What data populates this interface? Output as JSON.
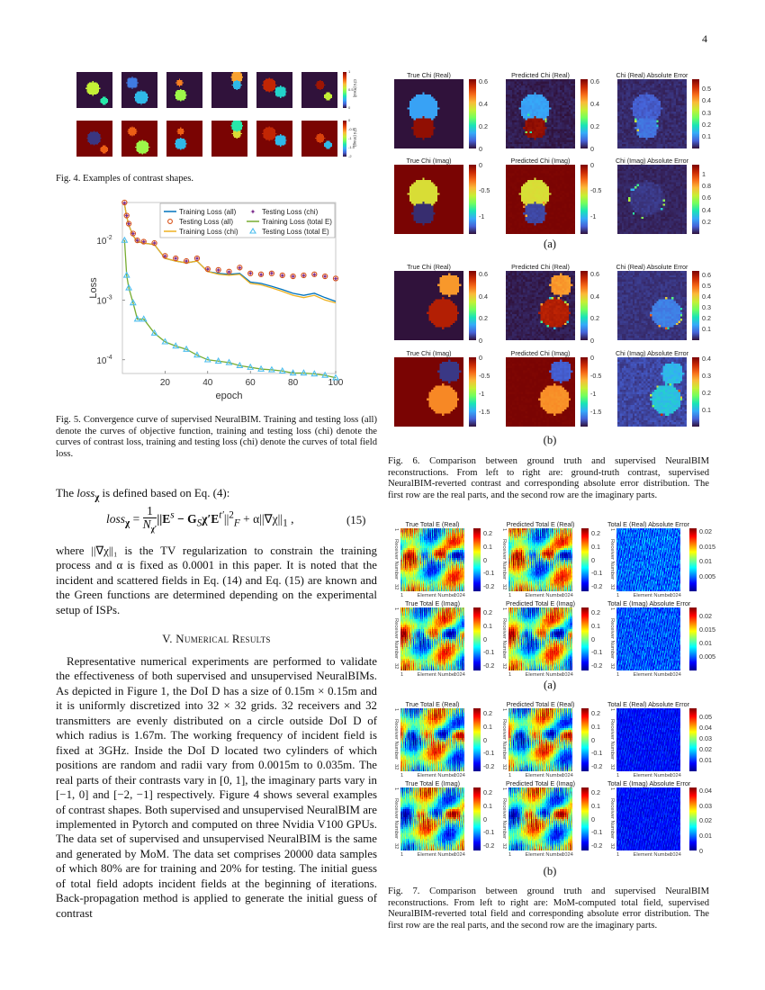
{
  "page_number": "4",
  "fig4": {
    "caption": "Fig. 4.  Examples of contrast shapes.",
    "colorbar_real": {
      "label": "Chi (Real)",
      "ticks": [
        "1",
        "0.5",
        "0"
      ]
    },
    "colorbar_imag": {
      "label": "Chi (Imag)",
      "ticks": [
        "0",
        "-0.5",
        "-1",
        "-1.5",
        "-2"
      ]
    }
  },
  "fig5": {
    "caption": "Fig. 5.  Convergence curve of supervised NeuralBIM. Training and testing loss (all) denote the curves of objective function, training and testing loss (chi) denote the curves of contrast loss, training and testing loss (chi) denote the curves of total field loss."
  },
  "chart_data": {
    "type": "line",
    "xlabel": "epoch",
    "ylabel": "Loss",
    "xlim": [
      0,
      100
    ],
    "ylim": [
      5.9e-05,
      0.043
    ],
    "yscale": "log",
    "x_ticks": [
      "20",
      "40",
      "60",
      "80",
      "100"
    ],
    "y_ticks": [
      {
        "label": "10",
        "exp": "-2",
        "value": 0.01
      },
      {
        "label": "10",
        "exp": "-3",
        "value": 0.001
      },
      {
        "label": "10",
        "exp": "-4",
        "value": 0.0001
      }
    ],
    "grid": false,
    "legend_position": "top-right",
    "x": [
      1,
      2,
      3,
      5,
      7,
      10,
      15,
      20,
      25,
      30,
      35,
      40,
      45,
      50,
      55,
      60,
      65,
      70,
      75,
      80,
      85,
      90,
      95,
      100
    ],
    "series": [
      {
        "name": "Training Loss (all)",
        "color": "#0072bd",
        "style": "line",
        "values": [
          0.04,
          0.025,
          0.018,
          0.012,
          0.0095,
          0.009,
          0.0085,
          0.005,
          0.0045,
          0.0042,
          0.0045,
          0.003,
          0.0028,
          0.0027,
          0.0028,
          0.002,
          0.0019,
          0.0017,
          0.0015,
          0.0013,
          0.0012,
          0.0013,
          0.0011,
          0.00095
        ]
      },
      {
        "name": "Testing Loss (all)",
        "color": "#d95319",
        "style": "circle",
        "values": [
          0.043,
          0.026,
          0.019,
          0.013,
          0.01,
          0.0095,
          0.009,
          0.0055,
          0.005,
          0.0045,
          0.005,
          0.0033,
          0.0032,
          0.003,
          0.0035,
          0.0028,
          0.0027,
          0.0028,
          0.0026,
          0.0025,
          0.0026,
          0.0027,
          0.0025,
          0.0023
        ]
      },
      {
        "name": "Training Loss (chi)",
        "color": "#edb120",
        "style": "line",
        "values": [
          0.04,
          0.025,
          0.018,
          0.012,
          0.0095,
          0.009,
          0.0085,
          0.005,
          0.0045,
          0.0042,
          0.0045,
          0.003,
          0.0027,
          0.0026,
          0.0027,
          0.0019,
          0.0018,
          0.0016,
          0.0014,
          0.0012,
          0.0011,
          0.0012,
          0.001,
          0.0009
        ]
      },
      {
        "name": "Testing Loss (chi)",
        "color": "#7e2f8e",
        "style": "star",
        "values": [
          0.042,
          0.026,
          0.019,
          0.013,
          0.01,
          0.0095,
          0.009,
          0.0055,
          0.005,
          0.0045,
          0.005,
          0.0033,
          0.0032,
          0.003,
          0.0035,
          0.0028,
          0.0027,
          0.0028,
          0.0026,
          0.0025,
          0.0026,
          0.0027,
          0.0025,
          0.0023
        ]
      },
      {
        "name": "Training Loss (total E)",
        "color": "#77ac30",
        "style": "line",
        "values": [
          0.01,
          0.0026,
          0.0016,
          0.0009,
          0.00048,
          0.00048,
          0.00028,
          0.0002,
          0.00017,
          0.00015,
          0.00012,
          0.0001,
          9.5e-05,
          9e-05,
          8e-05,
          7.5e-05,
          7e-05,
          6.8e-05,
          6.5e-05,
          6e-05,
          6e-05,
          5.8e-05,
          5.5e-05,
          5e-05
        ]
      },
      {
        "name": "Testing Loss (total E)",
        "color": "#4dbeee",
        "style": "triangle",
        "values": [
          0.01,
          0.0026,
          0.0016,
          0.0009,
          0.00048,
          0.00048,
          0.00028,
          0.0002,
          0.00017,
          0.00015,
          0.00012,
          0.0001,
          9.5e-05,
          9e-05,
          8e-05,
          7.5e-05,
          7e-05,
          6.8e-05,
          6.5e-05,
          6e-05,
          6e-05,
          5.8e-05,
          5.5e-05,
          5e-05
        ]
      }
    ]
  },
  "left_text": {
    "intro_pre": "The ",
    "intro_loss": "loss",
    "intro_sub": "χ",
    "intro_post": " is defined based on Eq. (4):",
    "equation": {
      "lhs": "loss",
      "lhs_sub": "χ",
      "equals": " = ",
      "frac_num": "1",
      "frac_den": "N",
      "frac_den_sub": "χ′",
      "body": "||E",
      "body2": " − G",
      "body3": "χ′E",
      "body4": "||",
      "body5": " + α||∇χ||",
      "body6": " ,",
      "sup_s": "s",
      "sub_S": "S",
      "sup_t": "t′",
      "sup2": "2",
      "subF": "F",
      "sub1": "1",
      "number": "(15)"
    },
    "para1": "where ||∇χ||₁ is the TV regularization to constrain the training process and α is fixed as 0.0001 in this paper. It is noted that the incident and scattered fields in Eq. (14) and Eq. (15) are known and the Green functions are determined depending on the experimental setup of ISPs.",
    "section_heading": "V. Numerical Results",
    "para2": "Representative numerical experiments are performed to validate the effectiveness of both supervised and unsupervised NeuralBIMs. As depicted in Figure 1, the DoI D has a size of 0.15m × 0.15m and it is uniformly discretized into 32 × 32 grids. 32 receivers and 32 transmitters are evenly distributed on a circle outside DoI D of which radius is 1.67m. The working frequency of incident field is fixed at 3GHz. Inside the DoI D located two cylinders of which positions are random and radii vary from 0.0015m to 0.035m. The real parts of their contrasts vary in [0, 1], the imaginary parts vary in [−1, 0] and [−2, −1] respectively. Figure 4 shows several examples of contrast shapes. Both supervised and unsupervised NeuralBIM are implemented in Pytorch and computed on three Nvidia V100 GPUs. The data set of supervised and unsupervised NeuralBIM is the same and generated by MoM. The data set comprises 20000 data samples of which 80% are for training and 20% for testing. The initial guess of total field adopts incident fields at the beginning of iterations. Back-propagation method is applied to generate the initial guess of contrast"
  },
  "fig6": {
    "sub_a": "(a)",
    "sub_b": "(b)",
    "caption": "Fig. 6.  Comparison between ground truth and supervised NeuralBIM reconstructions. From left to right are: ground-truth contrast, supervised NeuralBIM-reverted contrast and corresponding absolute error distribution. The first row are the real parts, and the second row are the imaginary parts.",
    "panels": [
      {
        "title": "True Chi (Real)",
        "ticks": [
          "0.6",
          "0.4",
          "0.2",
          "0"
        ],
        "tick_values": [
          0.6,
          0.4,
          0.2,
          0
        ],
        "range": [
          0,
          0.62
        ],
        "colormap": "turbo"
      },
      {
        "title": "Predicted Chi (Real)",
        "ticks": [
          "0.6",
          "0.4",
          "0.2",
          "0"
        ],
        "tick_values": [
          0.6,
          0.4,
          0.2,
          0
        ],
        "range": [
          0,
          0.62
        ],
        "colormap": "turbo"
      },
      {
        "title": "Chi (Real) Absolute Error",
        "ticks": [
          "0.5",
          "0.4",
          "0.3",
          "0.2",
          "0.1"
        ],
        "tick_values": [
          0.5,
          0.4,
          0.3,
          0.2,
          0.1
        ],
        "range": [
          0,
          0.58
        ],
        "colormap": "turbo"
      },
      {
        "title": "True Chi (Imag)",
        "ticks": [
          "0",
          "-0.5",
          "-1"
        ],
        "tick_values": [
          0,
          -0.5,
          -1
        ],
        "range": [
          -1.35,
          0
        ],
        "colormap": "turbo"
      },
      {
        "title": "Predicted Chi (Imag)",
        "ticks": [
          "0",
          "-0.5",
          "-1"
        ],
        "tick_values": [
          0,
          -0.5,
          -1
        ],
        "range": [
          -1.35,
          0
        ],
        "colormap": "turbo"
      },
      {
        "title": "Chi (Imag) Absolute Error",
        "ticks": [
          "1",
          "0.8",
          "0.6",
          "0.4",
          "0.2"
        ],
        "tick_values": [
          1,
          0.8,
          0.6,
          0.4,
          0.2
        ],
        "range": [
          0,
          1.15
        ],
        "colormap": "turbo"
      },
      {
        "title": "True Chi (Real)",
        "ticks": [
          "0.6",
          "0.4",
          "0.2",
          "0"
        ],
        "tick_values": [
          0.6,
          0.4,
          0.2,
          0
        ],
        "range": [
          0,
          0.63
        ],
        "colormap": "turbo"
      },
      {
        "title": "Predicted Chi (Real)",
        "ticks": [
          "0.6",
          "0.4",
          "0.2",
          "0"
        ],
        "tick_values": [
          0.6,
          0.4,
          0.2,
          0
        ],
        "range": [
          0,
          0.63
        ],
        "colormap": "turbo"
      },
      {
        "title": "Chi (Real) Absolute Error",
        "ticks": [
          "0.6",
          "0.5",
          "0.4",
          "0.3",
          "0.2",
          "0.1"
        ],
        "tick_values": [
          0.6,
          0.5,
          0.4,
          0.3,
          0.2,
          0.1
        ],
        "range": [
          0,
          0.64
        ],
        "colormap": "turbo"
      },
      {
        "title": "True Chi (Imag)",
        "ticks": [
          "0",
          "-0.5",
          "-1",
          "-1.5"
        ],
        "tick_values": [
          0,
          -0.5,
          -1,
          -1.5
        ],
        "range": [
          -1.9,
          0
        ],
        "colormap": "turbo"
      },
      {
        "title": "Predicted Chi (Imag)",
        "ticks": [
          "0",
          "-0.5",
          "-1",
          "-1.5"
        ],
        "tick_values": [
          0,
          -0.5,
          -1,
          -1.5
        ],
        "range": [
          -1.9,
          0
        ],
        "colormap": "turbo"
      },
      {
        "title": "Chi (Imag) Absolute Error",
        "ticks": [
          "0.4",
          "0.3",
          "0.2",
          "0.1"
        ],
        "tick_values": [
          0.4,
          0.3,
          0.2,
          0.1
        ],
        "range": [
          0,
          0.41
        ],
        "colormap": "turbo"
      }
    ]
  },
  "fig7": {
    "sub_a": "(a)",
    "sub_b": "(b)",
    "ylabel": "Receiver Number",
    "xlabel": "Element Number",
    "y_first": "1",
    "y_last": "32",
    "x_first": "1",
    "x_last": "1024",
    "caption": "Fig. 7.  Comparison between ground truth and supervised NeuralBIM reconstructions. From left to right are: MoM-computed total field, supervised NeuralBIM-reverted total field and corresponding absolute error distribution. The first row are the real parts, and the second row are the imaginary parts.",
    "panels": [
      {
        "title": "True Total E (Real)",
        "ticks": [
          "0.2",
          "0.1",
          "0",
          "-0.1",
          "-0.2"
        ],
        "tick_values": [
          0.2,
          0.1,
          0,
          -0.1,
          -0.2
        ],
        "range": [
          -0.24,
          0.24
        ],
        "colormap": "jet"
      },
      {
        "title": "Predicted Total E (Real)",
        "ticks": [
          "0.2",
          "0.1",
          "0",
          "-0.1",
          "-0.2"
        ],
        "tick_values": [
          0.2,
          0.1,
          0,
          -0.1,
          -0.2
        ],
        "range": [
          -0.24,
          0.24
        ],
        "colormap": "jet"
      },
      {
        "title": "Total E (Real) Absolute Error",
        "ticks": [
          "0.02",
          "0.015",
          "0.01",
          "0.005"
        ],
        "tick_values": [
          0.02,
          0.015,
          0.01,
          0.005
        ],
        "range": [
          0,
          0.021
        ],
        "colormap": "jet"
      },
      {
        "title": "True Total E (Imag)",
        "ticks": [
          "0.2",
          "0.1",
          "0",
          "-0.1",
          "-0.2"
        ],
        "tick_values": [
          0.2,
          0.1,
          0,
          -0.1,
          -0.2
        ],
        "range": [
          -0.24,
          0.24
        ],
        "colormap": "jet"
      },
      {
        "title": "Predicted Total E (Imag)",
        "ticks": [
          "0.2",
          "0.1",
          "0",
          "-0.1",
          "-0.2"
        ],
        "tick_values": [
          0.2,
          0.1,
          0,
          -0.1,
          -0.2
        ],
        "range": [
          -0.24,
          0.24
        ],
        "colormap": "jet"
      },
      {
        "title": "Total E (Imag) Absolute Error",
        "ticks": [
          "0.02",
          "0.015",
          "0.01",
          "0.005"
        ],
        "tick_values": [
          0.02,
          0.015,
          0.01,
          0.005
        ],
        "range": [
          0,
          0.023
        ],
        "colormap": "jet"
      },
      {
        "title": "True Total E (Real)",
        "ticks": [
          "0.2",
          "0.1",
          "0",
          "-0.1",
          "-0.2"
        ],
        "tick_values": [
          0.2,
          0.1,
          0,
          -0.1,
          -0.2
        ],
        "range": [
          -0.24,
          0.24
        ],
        "colormap": "jet"
      },
      {
        "title": "Predicted Total E (Real)",
        "ticks": [
          "0.2",
          "0.1",
          "0",
          "-0.1",
          "-0.2"
        ],
        "tick_values": [
          0.2,
          0.1,
          0,
          -0.1,
          -0.2
        ],
        "range": [
          -0.24,
          0.24
        ],
        "colormap": "jet"
      },
      {
        "title": "Total E (Real) Absolute Error",
        "ticks": [
          "0.05",
          "0.04",
          "0.03",
          "0.02",
          "0.01"
        ],
        "tick_values": [
          0.05,
          0.04,
          0.03,
          0.02,
          0.01
        ],
        "range": [
          0,
          0.058
        ],
        "colormap": "jet"
      },
      {
        "title": "True Total E (Imag)",
        "ticks": [
          "0.2",
          "0.1",
          "0",
          "-0.1",
          "-0.2"
        ],
        "tick_values": [
          0.2,
          0.1,
          0,
          -0.1,
          -0.2
        ],
        "range": [
          -0.24,
          0.24
        ],
        "colormap": "jet"
      },
      {
        "title": "Predicted Total E (Imag)",
        "ticks": [
          "0.2",
          "0.1",
          "0",
          "-0.1",
          "-0.2"
        ],
        "tick_values": [
          0.2,
          0.1,
          0,
          -0.1,
          -0.2
        ],
        "range": [
          -0.24,
          0.24
        ],
        "colormap": "jet"
      },
      {
        "title": "Total E (Imag) Absolute Error",
        "ticks": [
          "0.04",
          "0.03",
          "0.02",
          "0.01",
          "0"
        ],
        "tick_values": [
          0.04,
          0.03,
          0.02,
          0.01,
          0
        ],
        "range": [
          0,
          0.042
        ],
        "colormap": "jet"
      }
    ]
  }
}
